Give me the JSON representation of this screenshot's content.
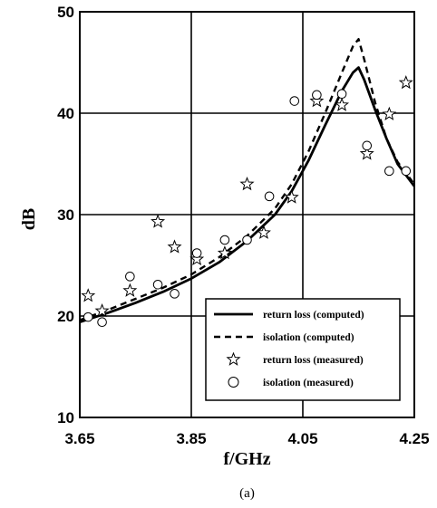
{
  "chart_data": {
    "type": "line",
    "caption": "(a)",
    "xlabel": "f/GHz",
    "ylabel": "dB",
    "xlim": [
      3.65,
      4.25
    ],
    "ylim": [
      10,
      50
    ],
    "xticks": [
      3.65,
      3.85,
      4.05,
      4.25
    ],
    "xtick_labels": [
      "3.65",
      "3.85",
      "4.05",
      "4.25"
    ],
    "yticks": [
      10,
      20,
      30,
      40,
      50
    ],
    "ytick_labels": [
      "10",
      "20",
      "30",
      "40",
      "50"
    ],
    "grid": true,
    "legend_position": "bottom-right",
    "series": [
      {
        "name": "return loss (computed)",
        "style": "solid-line",
        "x": [
          3.65,
          3.7,
          3.75,
          3.8,
          3.85,
          3.9,
          3.95,
          4.0,
          4.03,
          4.06,
          4.09,
          4.12,
          4.14,
          4.15,
          4.16,
          4.18,
          4.2,
          4.22,
          4.25
        ],
        "y": [
          19.4,
          20.3,
          21.3,
          22.4,
          23.7,
          25.3,
          27.4,
          30.0,
          32.3,
          35.3,
          38.8,
          42.2,
          44.0,
          44.5,
          43.3,
          40.3,
          37.5,
          35.0,
          32.8
        ]
      },
      {
        "name": "isolation (computed)",
        "style": "dashed-line",
        "x": [
          3.65,
          3.7,
          3.75,
          3.8,
          3.85,
          3.9,
          3.95,
          4.0,
          4.03,
          4.06,
          4.09,
          4.12,
          4.14,
          4.15,
          4.16,
          4.18,
          4.2,
          4.22,
          4.25
        ],
        "y": [
          19.6,
          20.6,
          21.7,
          22.8,
          24.1,
          25.8,
          27.9,
          30.6,
          33.0,
          36.2,
          40.0,
          44.0,
          46.6,
          47.3,
          45.3,
          41.0,
          37.5,
          35.2,
          33.0
        ]
      },
      {
        "name": "return loss (measured)",
        "style": "star-marker",
        "x": [
          3.665,
          3.69,
          3.74,
          3.79,
          3.82,
          3.86,
          3.91,
          3.95,
          3.98,
          4.03,
          4.075,
          4.12,
          4.165,
          4.205,
          4.235
        ],
        "y": [
          22.0,
          20.5,
          22.5,
          29.3,
          26.8,
          25.6,
          26.2,
          33.0,
          28.2,
          31.7,
          41.2,
          40.8,
          36.0,
          39.9,
          43.0
        ]
      },
      {
        "name": "isolation (measured)",
        "style": "circle-marker",
        "x": [
          3.665,
          3.69,
          3.74,
          3.79,
          3.82,
          3.86,
          3.91,
          3.95,
          3.99,
          4.035,
          4.075,
          4.12,
          4.165,
          4.205,
          4.235
        ],
        "y": [
          19.9,
          19.4,
          23.9,
          23.1,
          22.2,
          26.2,
          27.5,
          27.5,
          31.8,
          41.2,
          41.8,
          41.9,
          36.8,
          34.3,
          34.3
        ]
      }
    ]
  },
  "colors": {
    "ink": "#000000",
    "background": "#ffffff"
  }
}
